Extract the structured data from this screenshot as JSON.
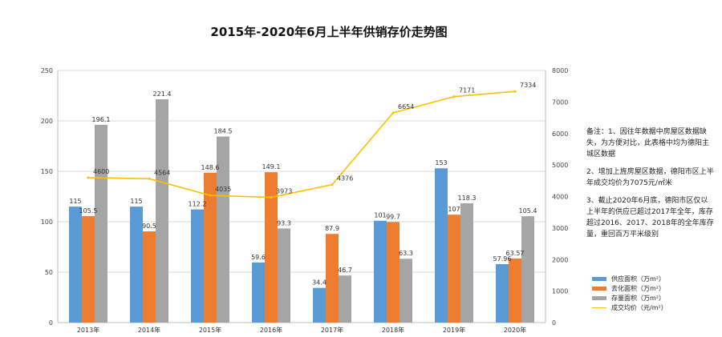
{
  "chart_data": {
    "type": "bar",
    "title": "2015年-2020年6月上半年供销存价走势图",
    "categories": [
      "2013年",
      "2014年",
      "2015年",
      "2016年",
      "2017年",
      "2018年",
      "2019年",
      "2020年"
    ],
    "series": [
      {
        "name": "供应面积（万m²）",
        "type": "bar",
        "axis": "left",
        "color": "#5b9bd5",
        "values": [
          115,
          115,
          112.2,
          59.6,
          34.4,
          101,
          153,
          57.96
        ],
        "labels": [
          "115",
          "115",
          "112.2",
          "59.6",
          "34.4",
          "101",
          "153",
          "57.96"
        ]
      },
      {
        "name": "去化面积（万m²）",
        "type": "bar",
        "axis": "left",
        "color": "#ed7d31",
        "values": [
          105.5,
          90.5,
          148.6,
          149.1,
          87.9,
          99.7,
          107,
          63.57
        ],
        "labels": [
          "105.5",
          "90.5",
          "148.6",
          "149.1",
          "87.9",
          "99.7",
          "107",
          "63.57"
        ]
      },
      {
        "name": "存量面积（万m²）",
        "type": "bar",
        "axis": "left",
        "color": "#a5a5a5",
        "values": [
          196.1,
          221.4,
          184.5,
          93.3,
          46.7,
          63.3,
          118.3,
          105.4
        ],
        "labels": [
          "196.1",
          "221.4",
          "184.5",
          "93.3",
          "46.7",
          "63.3",
          "118.3",
          "105.4"
        ]
      },
      {
        "name": "成交均价（元/m²）",
        "type": "line",
        "axis": "right",
        "color": "#ffc000",
        "values": [
          4600,
          4564,
          4035,
          3973,
          4376,
          6654,
          7171,
          7334
        ],
        "labels": [
          "4600",
          "4564",
          "4035",
          "3973",
          "4376",
          "6654",
          "7171",
          "7334"
        ]
      }
    ],
    "y_left": {
      "min": 0,
      "max": 250,
      "ticks": [
        "0",
        "50",
        "100",
        "150",
        "200",
        "250"
      ]
    },
    "y_right": {
      "min": 0,
      "max": 8000,
      "ticks": [
        "0",
        "1000",
        "2000",
        "3000",
        "4000",
        "5000",
        "6000",
        "7000",
        "8000"
      ]
    },
    "grid": true,
    "legend_position": "bottom-right",
    "notes": [
      "备注：1、因往年数据中房屋区数据缺失，为方便对比，此表格中均为德阳主城区数据",
      "2、增加上旌房屋区数据，德阳市区上半年成交均价为7075元/㎡米",
      "3、截止2020年6月底，德阳市区仅以上半年的供应已超过2017年全年，库存超过2016、2017、2018年的全年库存量，重回百万平米级别"
    ]
  }
}
